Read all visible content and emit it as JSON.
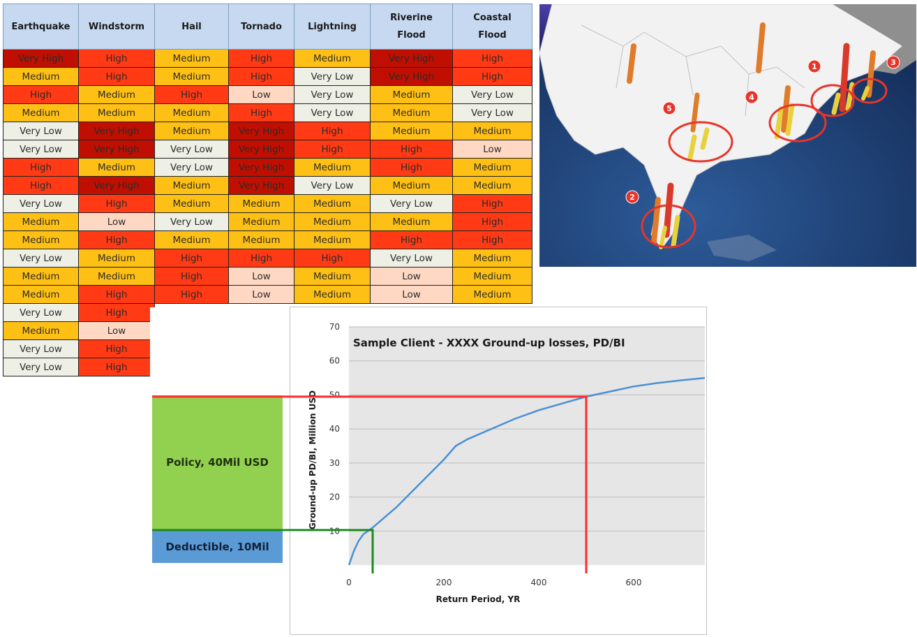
{
  "table": {
    "headers": [
      "Earthquake",
      "Windstorm",
      "Hail",
      "Tornado",
      "Lightning",
      "Riverine\nFlood",
      "Coastal\nFlood"
    ],
    "rows": [
      [
        "Very High",
        "High",
        "Medium",
        "High",
        "Medium",
        "Very High",
        "High"
      ],
      [
        "Medium",
        "High",
        "Medium",
        "High",
        "Very Low",
        "Very High",
        "High"
      ],
      [
        "High",
        "Medium",
        "High",
        "Low",
        "Very Low",
        "Medium",
        "Very Low"
      ],
      [
        "Medium",
        "Medium",
        "Medium",
        "High",
        "Very Low",
        "Medium",
        "Very Low"
      ],
      [
        "Very Low",
        "Very High",
        "Medium",
        "Very High",
        "High",
        "Medium",
        "Medium"
      ],
      [
        "Very Low",
        "Very High",
        "Very Low",
        "Very High",
        "High",
        "High",
        "Low"
      ],
      [
        "High",
        "Medium",
        "Very Low",
        "Very High",
        "Medium",
        "High",
        "Medium"
      ],
      [
        "High",
        "Very High",
        "Medium",
        "Very High",
        "Very Low",
        "Medium",
        "Medium"
      ],
      [
        "Very Low",
        "High",
        "Medium",
        "Medium",
        "Medium",
        "Very Low",
        "High"
      ],
      [
        "Medium",
        "Low",
        "Very Low",
        "Medium",
        "Medium",
        "Medium",
        "High"
      ],
      [
        "Medium",
        "High",
        "Medium",
        "Medium",
        "Medium",
        "High",
        "High"
      ],
      [
        "Very Low",
        "Medium",
        "High",
        "High",
        "High",
        "Very Low",
        "Medium"
      ],
      [
        "Medium",
        "Medium",
        "High",
        "Low",
        "Medium",
        "Low",
        "Medium"
      ],
      [
        "Medium",
        "High",
        "High",
        "Low",
        "Medium",
        "Low",
        "Medium"
      ],
      [
        "Very Low",
        "High"
      ],
      [
        "Medium",
        "Low"
      ],
      [
        "Very Low",
        "High"
      ],
      [
        "Very Low",
        "High"
      ]
    ]
  },
  "map": {
    "markers": [
      {
        "label": "1",
        "x": 1167,
        "y": 95
      },
      {
        "label": "2",
        "x": 906,
        "y": 282
      },
      {
        "label": "3",
        "x": 1280,
        "y": 89
      },
      {
        "label": "4",
        "x": 1077,
        "y": 139
      },
      {
        "label": "5",
        "x": 959,
        "y": 155
      }
    ],
    "colors": {
      "ocean": "#1e3c6e",
      "land": "#f0f0f0",
      "marker": "#e8342a",
      "bar_orange": "#e07b2a",
      "bar_yellow": "#e8d23c"
    }
  },
  "policy": {
    "label": "Policy, 40Mil USD",
    "deductible_label": "Deductible, 10Mil"
  },
  "chart_data": {
    "type": "line",
    "title": "Sample Client - XXXX Ground-up losses, PD/BI",
    "xlabel": "Return Period, YR",
    "ylabel": "Ground-up PD/BI, Million USD",
    "xlim": [
      0,
      750
    ],
    "ylim": [
      0,
      70
    ],
    "xticks": [
      0,
      200,
      400,
      600
    ],
    "yticks": [
      10,
      20,
      30,
      40,
      50,
      60,
      70
    ],
    "grid": true,
    "series": [
      {
        "color": "#4a8fd4",
        "x": [
          0,
          5,
          10,
          20,
          30,
          40,
          50,
          75,
          100,
          150,
          200,
          225,
          250,
          300,
          350,
          400,
          450,
          500,
          550,
          600,
          650,
          700,
          750
        ],
        "y": [
          0,
          2,
          4,
          7,
          9,
          10,
          11,
          14,
          17,
          24,
          31,
          35,
          37,
          40,
          43,
          45.5,
          47.5,
          49.5,
          51,
          52.5,
          53.5,
          54.3,
          55
        ]
      }
    ],
    "reference_lines": [
      {
        "color": "#ff2a2a",
        "y": 49.5,
        "x_to": 500
      },
      {
        "color": "#1e8a1e",
        "y": 10.3,
        "x_to": 50
      }
    ],
    "colors": {
      "plot_bg": "#e6e6e6",
      "grid": "#bdbdbd"
    }
  }
}
